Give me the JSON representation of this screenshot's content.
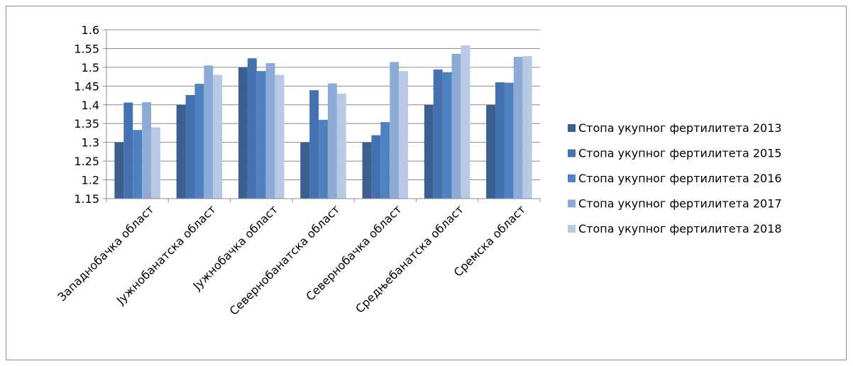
{
  "chart_data": {
    "type": "bar",
    "title": "",
    "xlabel": "",
    "ylabel": "",
    "ylim": [
      1.15,
      1.6
    ],
    "yticks": [
      "1.6",
      "1.55",
      "1.5",
      "1.45",
      "1.4",
      "1.35",
      "1.3",
      "1.25",
      "1.2",
      "1.15"
    ],
    "grid": true,
    "legend_position": "right",
    "categories": [
      "Западнобачка област",
      "Јужнобанатска област",
      "Јужнобачка област",
      "Севернобанатска област",
      "Севернобачка област",
      "Средњебанатска област",
      "Сремска област"
    ],
    "series": [
      {
        "name": "Стопа укупног фертилитета 2013",
        "color": "#3b5f8f",
        "values": [
          1.3,
          1.4,
          1.5,
          1.3,
          1.3,
          1.4,
          1.4
        ]
      },
      {
        "name": "Стопа укупног фертилитета 2015",
        "color": "#4471b0",
        "values": [
          1.406,
          1.426,
          1.524,
          1.439,
          1.319,
          1.494,
          1.46
        ]
      },
      {
        "name": "Стопа укупног фертилитета 2016",
        "color": "#4f81c0",
        "values": [
          1.333,
          1.456,
          1.49,
          1.36,
          1.354,
          1.487,
          1.459
        ]
      },
      {
        "name": "Стопа укупног фертилитета 2017",
        "color": "#8eaad6",
        "values": [
          1.407,
          1.505,
          1.511,
          1.457,
          1.514,
          1.536,
          1.528
        ]
      },
      {
        "name": "Стопа укупног фертилитета 2018",
        "color": "#b8c9e6",
        "values": [
          1.34,
          1.48,
          1.48,
          1.43,
          1.49,
          1.559,
          1.53
        ]
      }
    ]
  }
}
